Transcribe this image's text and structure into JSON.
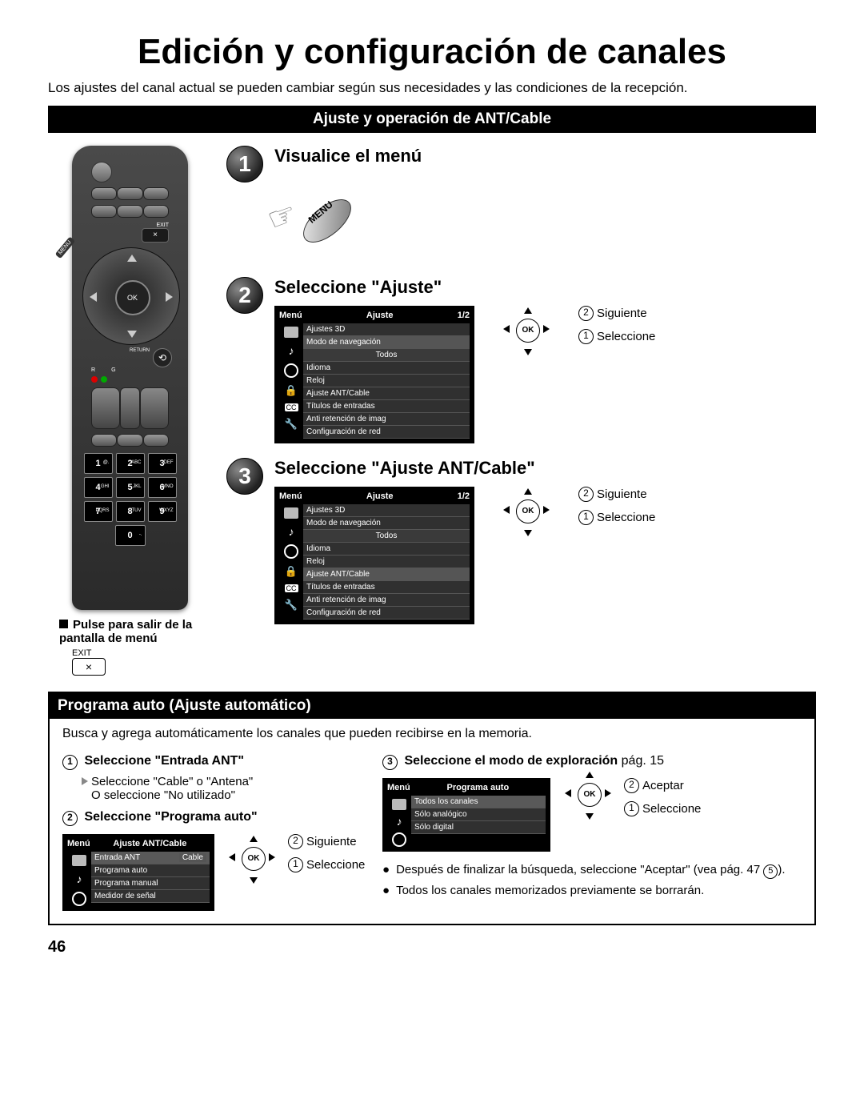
{
  "title": "Edición y configuración de canales",
  "intro": "Los ajustes del canal actual se pueden cambiar según sus necesidades y las condiciones de la recepción.",
  "sectionBanner": "Ajuste y operación de ANT/Cable",
  "remote": {
    "exitLabel": "EXIT",
    "exitBtn": "×",
    "menuLabel": "MENU",
    "okLabel": "OK",
    "returnLabel": "RETURN",
    "returnBtn": "⟲",
    "r": "R",
    "g": "G",
    "keys": [
      {
        "n": "1",
        "s": "@."
      },
      {
        "n": "2",
        "s": "ABC"
      },
      {
        "n": "3",
        "s": "DEF"
      },
      {
        "n": "4",
        "s": "GHI"
      },
      {
        "n": "5",
        "s": "JKL"
      },
      {
        "n": "6",
        "s": "MNO"
      },
      {
        "n": "7",
        "s": "PQRS"
      },
      {
        "n": "8",
        "s": "TUV"
      },
      {
        "n": "9",
        "s": "WXYZ"
      },
      {
        "n": "0",
        "s": "-."
      }
    ],
    "note": "Pulse para salir de la pantalla de menú",
    "exitStandalone": {
      "label": "EXIT",
      "btn": "×"
    }
  },
  "steps": {
    "s1": {
      "num": "1",
      "title": "Visualice el menú",
      "menuBtn": "MENU"
    },
    "s2": {
      "num": "2",
      "title": "Seleccione \"Ajuste\""
    },
    "s3": {
      "num": "3",
      "title": "Seleccione \"Ajuste ANT/Cable\""
    }
  },
  "navCue": {
    "ok": "OK",
    "siguiente": "Siguiente",
    "seleccione": "Seleccione",
    "aceptar": "Aceptar",
    "n1": "1",
    "n2": "2"
  },
  "osdMenu": {
    "menuLabel": "Menú",
    "ajusteLabel": "Ajuste",
    "page": "1/2",
    "items1": [
      "Ajustes 3D",
      "Modo de navegación"
    ],
    "todos": "Todos",
    "items2": [
      "Idioma",
      "Reloj",
      "Ajuste ANT/Cable",
      "Títulos de entradas",
      "Anti retención de imag",
      "Configuración de red"
    ],
    "highlightStep2": "Modo de navegación",
    "highlightStep3": "Ajuste ANT/Cable"
  },
  "auto": {
    "header": "Programa auto (Ajuste automático)",
    "desc": "Busca y agrega automáticamente los canales que pueden recibirse en la memoria.",
    "step1": "Seleccione \"Entrada ANT\"",
    "step1a": "Seleccione \"Cable\" o \"Antena\"",
    "step1b": "O seleccione \"No utilizado\"",
    "step2": "Seleccione \"Programa auto\"",
    "step3": "Seleccione el modo de exploración",
    "step3ref": "pág. 15",
    "osdAnt": {
      "menu": "Menú",
      "title": "Ajuste ANT/Cable",
      "rows": [
        {
          "label": "Entrada ANT",
          "value": "Cable",
          "sel": true
        },
        {
          "label": "Programa auto"
        },
        {
          "label": "Programa manual"
        },
        {
          "label": "Medidor de señal"
        }
      ]
    },
    "osdProg": {
      "menu": "Menú",
      "title": "Programa auto",
      "rows": [
        "Todos los canales",
        "Sólo analógico",
        "Sólo digital"
      ]
    },
    "bullets": [
      "Después de finalizar la búsqueda, seleccione \"Aceptar\" (vea pág. 47 ⑤).",
      "Todos los canales memorizados previamente se borrarán."
    ]
  },
  "pageNum": "46"
}
